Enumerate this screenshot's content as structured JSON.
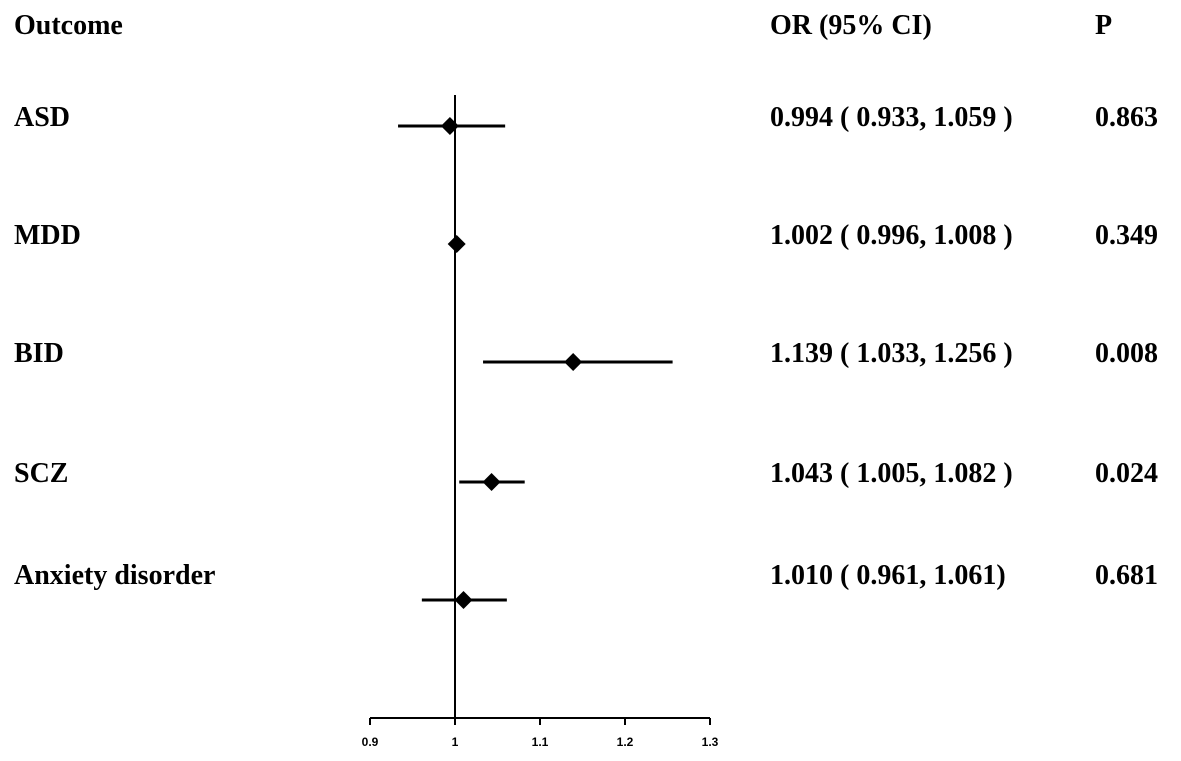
{
  "headers": {
    "outcome": "Outcome",
    "or": "OR (95% CI)",
    "p": "P"
  },
  "chart_data": {
    "type": "forest",
    "null_line": 1,
    "xlim": [
      0.9,
      1.3
    ],
    "xticks": [
      "0.9",
      "1",
      "1.1",
      "1.2",
      "1.3"
    ],
    "xtick_values": [
      0.9,
      1.0,
      1.1,
      1.2,
      1.3
    ],
    "rows": [
      {
        "label": "ASD",
        "or": 0.994,
        "lo": 0.933,
        "hi": 1.059,
        "or_text": "0.994 ( 0.933, 1.059 )",
        "p": "0.863"
      },
      {
        "label": "MDD",
        "or": 1.002,
        "lo": 0.996,
        "hi": 1.008,
        "or_text": "1.002 ( 0.996, 1.008 )",
        "p": "0.349"
      },
      {
        "label": "BID",
        "or": 1.139,
        "lo": 1.033,
        "hi": 1.256,
        "or_text": "1.139 ( 1.033, 1.256 )",
        "p": "0.008"
      },
      {
        "label": "SCZ",
        "or": 1.043,
        "lo": 1.005,
        "hi": 1.082,
        "or_text": "1.043 ( 1.005, 1.082 )",
        "p": "0.024"
      },
      {
        "label": "Anxiety disorder",
        "or": 1.01,
        "lo": 0.961,
        "hi": 1.061,
        "or_text": "1.010 ( 0.961, 1.061)",
        "p": "0.681"
      }
    ]
  }
}
